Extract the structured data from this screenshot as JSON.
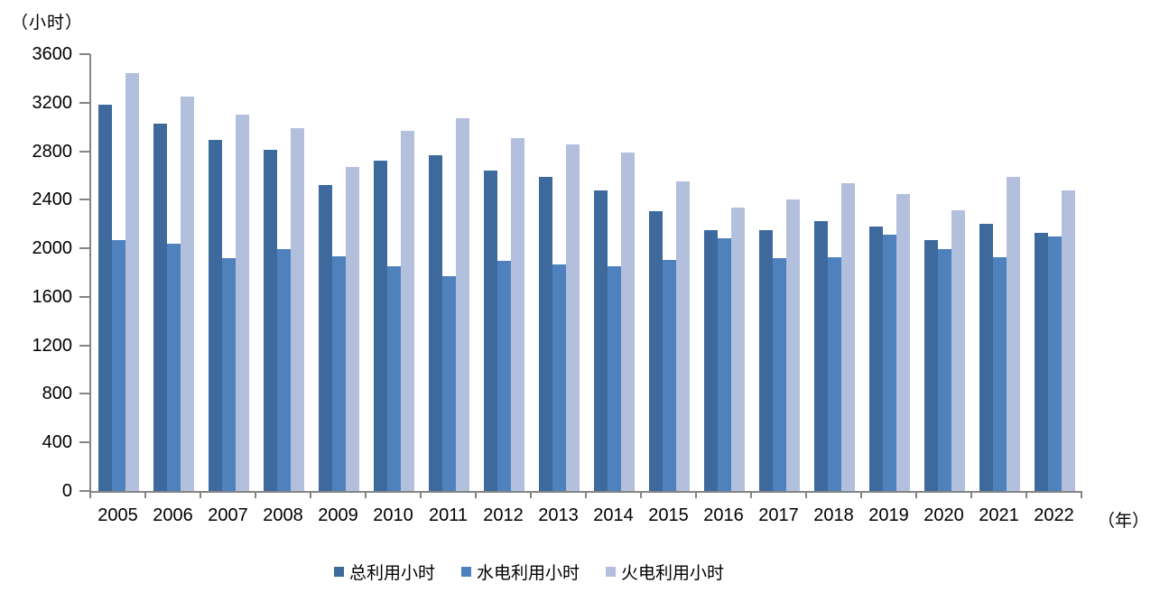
{
  "chart": {
    "unit_label": "（小时）",
    "x_axis_suffix": "（年）"
  },
  "chart_data": {
    "type": "bar",
    "title": "",
    "xlabel": "（年）",
    "ylabel": "（小时）",
    "ylim": [
      0,
      3600
    ],
    "ytick_step": 400,
    "yticks": [
      0,
      400,
      800,
      1200,
      1600,
      2000,
      2400,
      2800,
      3200,
      3600
    ],
    "grid": false,
    "legend_position": "bottom",
    "axis_color": "#848484",
    "categories": [
      "2005",
      "2006",
      "2007",
      "2008",
      "2009",
      "2010",
      "2011",
      "2012",
      "2013",
      "2014",
      "2015",
      "2016",
      "2017",
      "2018",
      "2019",
      "2020",
      "2021",
      "2022"
    ],
    "series": [
      {
        "name": "总利用小时",
        "color": "#3E699C",
        "values": [
          3180,
          3025,
          2895,
          2810,
          2525,
          2720,
          2770,
          2640,
          2590,
          2480,
          2305,
          2150,
          2150,
          2225,
          2180,
          2070,
          2205,
          2130
        ]
      },
      {
        "name": "水电利用小时",
        "color": "#4F81BD",
        "values": [
          2070,
          2040,
          1920,
          1995,
          1935,
          1855,
          1770,
          1900,
          1870,
          1850,
          1905,
          2080,
          1920,
          1930,
          2115,
          1995,
          1930,
          2100
        ]
      },
      {
        "name": "火电利用小时",
        "color": "#B2BFDD",
        "values": [
          3445,
          3250,
          3100,
          2990,
          2670,
          2970,
          3075,
          2910,
          2855,
          2790,
          2555,
          2335,
          2400,
          2535,
          2445,
          2310,
          2590,
          2480
        ]
      }
    ]
  }
}
